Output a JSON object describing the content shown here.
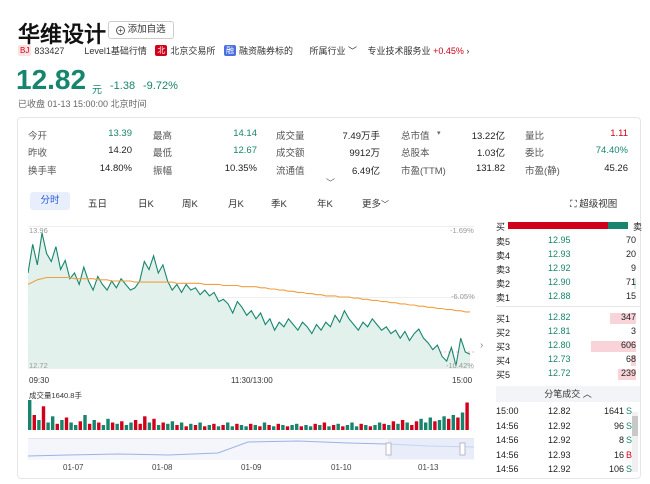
{
  "header": {
    "stock_name": "华维设计",
    "watchlist_label": "添加自选",
    "market_badge": "BJ",
    "code": "833427",
    "level1_badge": "L",
    "level1": "Level1基础行情",
    "exchange_badge": "北",
    "exchange": "北京交易所",
    "margin_badge": "融",
    "margin": "融资融券标的",
    "industry_label": "所属行业",
    "industry": "专业技术服务业",
    "industry_change": "+0.45%"
  },
  "quote": {
    "price": "12.82",
    "unit": "元",
    "change": "-1.38",
    "change_pct": "-9.72%",
    "status": "已收盘 01-13 15:00:00 北京时间"
  },
  "stats": [
    [
      {
        "label": "今开",
        "value": "13.39",
        "color": "green"
      },
      {
        "label": "最高",
        "value": "14.14",
        "color": "green"
      },
      {
        "label": "成交量",
        "value": "7.49万手",
        "color": "black"
      },
      {
        "label": "总市值",
        "value": "13.22亿",
        "color": "black"
      },
      {
        "label": "量比",
        "value": "1.11",
        "color": "red"
      }
    ],
    [
      {
        "label": "昨收",
        "value": "14.20",
        "color": "black"
      },
      {
        "label": "最低",
        "value": "12.67",
        "color": "green"
      },
      {
        "label": "成交额",
        "value": "9912万",
        "color": "black"
      },
      {
        "label": "总股本",
        "value": "1.03亿",
        "color": "black"
      },
      {
        "label": "委比",
        "value": "74.40%",
        "color": "green"
      }
    ],
    [
      {
        "label": "换手率",
        "value": "14.80%",
        "color": "black"
      },
      {
        "label": "振幅",
        "value": "10.35%",
        "color": "black"
      },
      {
        "label": "流通值",
        "value": "6.49亿",
        "color": "black"
      },
      {
        "label": "市盈(TTM)",
        "value": "131.82",
        "color": "black"
      },
      {
        "label": "市盈(静)",
        "value": "45.26",
        "color": "black"
      }
    ]
  ],
  "tabs": [
    "分时",
    "五日",
    "日K",
    "周K",
    "月K",
    "季K",
    "年K",
    "更多"
  ],
  "super_view": "超级视图",
  "chart_data": {
    "type": "line",
    "y_max_label": "13.96",
    "y_min_label": "12.72",
    "pct_top": "-1.69%",
    "pct_mid": "-6.05%",
    "pct_bottom": "-10.42%",
    "x_labels": [
      "09:30",
      "11:30/13:00",
      "15:00"
    ],
    "ylim": [
      12.72,
      13.96
    ],
    "price": [
      13.55,
      13.8,
      13.62,
      13.9,
      13.72,
      13.65,
      13.78,
      13.58,
      13.66,
      13.5,
      13.55,
      13.45,
      13.6,
      13.48,
      13.4,
      13.52,
      13.45,
      13.4,
      13.48,
      13.42,
      13.5,
      13.45,
      13.4,
      13.42,
      13.48,
      13.65,
      13.58,
      13.7,
      13.55,
      13.62,
      13.48,
      13.4,
      13.45,
      13.38,
      13.45,
      13.4,
      13.42,
      13.36,
      13.4,
      13.35,
      13.38,
      13.3,
      13.32,
      13.28,
      13.2,
      13.3,
      13.25,
      13.18,
      13.22,
      13.15,
      13.2,
      13.1,
      13.15,
      13.05,
      13.12,
      13.08,
      13.15,
      13.1,
      13.05,
      13.12,
      13.08,
      13.02,
      13.1,
      13.05,
      13.12,
      13.08,
      13.18,
      13.12,
      13.22,
      13.15,
      13.1,
      13.05,
      13.12,
      13.08,
      13.15,
      13.1,
      13.05,
      13.08,
      13.02,
      13.05,
      12.98,
      13.04,
      12.96,
      13.02,
      13.06,
      12.98,
      12.94,
      12.88,
      12.92,
      12.82,
      12.78,
      12.9,
      12.74,
      12.98,
      12.86,
      12.84
    ],
    "avg": [
      13.45,
      13.47,
      13.49,
      13.5,
      13.51,
      13.51,
      13.51,
      13.51,
      13.51,
      13.51,
      13.5,
      13.5,
      13.5,
      13.5,
      13.5,
      13.49,
      13.49,
      13.49,
      13.48,
      13.48,
      13.48,
      13.48,
      13.48,
      13.47,
      13.47,
      13.47,
      13.47,
      13.47,
      13.47,
      13.47,
      13.47,
      13.47,
      13.46,
      13.46,
      13.46,
      13.46,
      13.46,
      13.46,
      13.45,
      13.45,
      13.45,
      13.45,
      13.44,
      13.44,
      13.44,
      13.44,
      13.43,
      13.43,
      13.43,
      13.43,
      13.42,
      13.42,
      13.41,
      13.41,
      13.4,
      13.4,
      13.39,
      13.39,
      13.38,
      13.38,
      13.37,
      13.37,
      13.36,
      13.36,
      13.35,
      13.35,
      13.35,
      13.34,
      13.34,
      13.34,
      13.33,
      13.33,
      13.32,
      13.32,
      13.31,
      13.31,
      13.3,
      13.3,
      13.29,
      13.29,
      13.28,
      13.28,
      13.27,
      13.27,
      13.26,
      13.26,
      13.25,
      13.25,
      13.24,
      13.24,
      13.23,
      13.23,
      13.22,
      13.22,
      13.21,
      13.21
    ]
  },
  "volume": {
    "label": "成交量1640.8手",
    "values": [
      120,
      60,
      40,
      95,
      30,
      55,
      25,
      40,
      50,
      30,
      20,
      35,
      60,
      25,
      40,
      30,
      20,
      45,
      30,
      25,
      35,
      20,
      30,
      40,
      25,
      55,
      30,
      45,
      20,
      30,
      25,
      35,
      20,
      30,
      15,
      25,
      20,
      30,
      15,
      20,
      25,
      15,
      20,
      30,
      15,
      25,
      20,
      15,
      25,
      20,
      15,
      30,
      20,
      15,
      25,
      20,
      15,
      20,
      25,
      15,
      20,
      15,
      25,
      20,
      30,
      15,
      20,
      25,
      15,
      20,
      30,
      15,
      25,
      20,
      15,
      20,
      30,
      25,
      20,
      35,
      25,
      40,
      30,
      20,
      35,
      45,
      30,
      50,
      35,
      40,
      55,
      45,
      60,
      50,
      70,
      110
    ],
    "dirs": [
      "g",
      "r",
      "g",
      "r",
      "g",
      "g",
      "r",
      "g",
      "r",
      "g",
      "g",
      "r",
      "g",
      "r",
      "g",
      "r",
      "g",
      "g",
      "r",
      "g",
      "r",
      "g",
      "g",
      "r",
      "r",
      "r",
      "g",
      "r",
      "g",
      "r",
      "g",
      "g",
      "r",
      "g",
      "r",
      "g",
      "r",
      "g",
      "r",
      "g",
      "r",
      "g",
      "r",
      "g",
      "g",
      "r",
      "g",
      "g",
      "r",
      "g",
      "r",
      "g",
      "r",
      "g",
      "r",
      "g",
      "r",
      "g",
      "g",
      "r",
      "g",
      "g",
      "r",
      "g",
      "r",
      "g",
      "r",
      "g",
      "r",
      "g",
      "g",
      "g",
      "r",
      "g",
      "r",
      "g",
      "g",
      "r",
      "g",
      "r",
      "g",
      "r",
      "g",
      "r",
      "r",
      "g",
      "g",
      "g",
      "r",
      "g",
      "g",
      "r",
      "g",
      "r",
      "g",
      "r"
    ]
  },
  "nav_dates": [
    "01-07",
    "01-08",
    "01-09",
    "01-10",
    "01-13"
  ],
  "orderbook": {
    "buy_label": "买",
    "sell_label": "卖",
    "asks": [
      {
        "label": "卖5",
        "price": "12.95",
        "vol": "70",
        "frac": 0
      },
      {
        "label": "卖4",
        "price": "12.93",
        "vol": "20",
        "frac": 0
      },
      {
        "label": "卖3",
        "price": "12.92",
        "vol": "9",
        "frac": 0
      },
      {
        "label": "卖2",
        "price": "12.90",
        "vol": "71",
        "frac": 0.04
      },
      {
        "label": "卖1",
        "price": "12.88",
        "vol": "15",
        "frac": 0
      }
    ],
    "bids": [
      {
        "label": "买1",
        "price": "12.82",
        "vol": "347",
        "frac": 0.57
      },
      {
        "label": "买2",
        "price": "12.81",
        "vol": "3",
        "frac": 0
      },
      {
        "label": "买3",
        "price": "12.80",
        "vol": "606",
        "frac": 1.0
      },
      {
        "label": "买4",
        "price": "12.73",
        "vol": "68",
        "frac": 0.11
      },
      {
        "label": "买5",
        "price": "12.72",
        "vol": "239",
        "frac": 0.39
      }
    ]
  },
  "trades_title": "分笔成交",
  "trades": [
    {
      "time": "15:00",
      "price": "12.82",
      "vol": "1641",
      "dir": "S",
      "color": "green"
    },
    {
      "time": "14:56",
      "price": "12.92",
      "vol": "96",
      "dir": "S",
      "color": "green"
    },
    {
      "time": "14:56",
      "price": "12.92",
      "vol": "8",
      "dir": "S",
      "color": "green"
    },
    {
      "time": "14:56",
      "price": "12.93",
      "vol": "16",
      "dir": "B",
      "color": "red"
    },
    {
      "time": "14:56",
      "price": "12.92",
      "vol": "106",
      "dir": "S",
      "color": "green"
    }
  ]
}
